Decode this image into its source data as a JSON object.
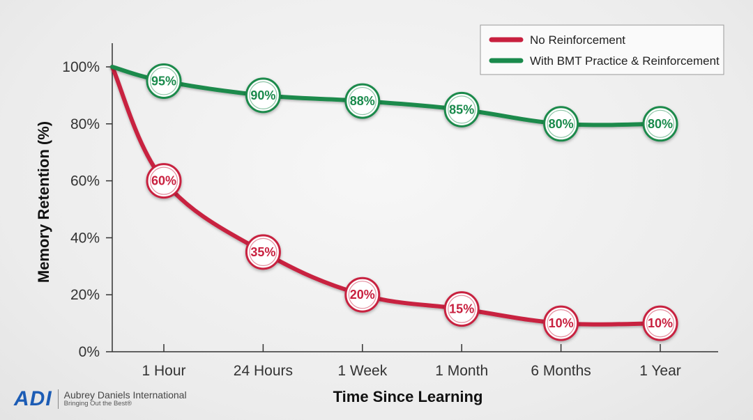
{
  "chart_data": {
    "type": "line",
    "categories": [
      "1 Hour",
      "24 Hours",
      "1 Week",
      "1 Month",
      "6 Months",
      "1 Year"
    ],
    "x_start_value": 100,
    "series": [
      {
        "name": "No Reinforcement",
        "color": "#c8203f",
        "values": [
          60,
          35,
          20,
          15,
          10,
          10
        ],
        "labels": [
          "60%",
          "35%",
          "20%",
          "15%",
          "10%",
          "10%"
        ]
      },
      {
        "name": "With BMT Practice & Reinforcement",
        "color": "#1a8a4c",
        "values": [
          95,
          90,
          88,
          85,
          80,
          80
        ],
        "labels": [
          "95%",
          "90%",
          "88%",
          "85%",
          "80%",
          "80%"
        ]
      }
    ],
    "xlabel": "Time Since Learning",
    "ylabel": "Memory Retention (%)",
    "ylim": [
      0,
      100
    ],
    "yticks": [
      "0%",
      "20%",
      "40%",
      "60%",
      "80%",
      "100%"
    ],
    "grid": false,
    "legend_position": "top-right"
  },
  "logo": {
    "mark": "ADI",
    "name": "Aubrey Daniels International",
    "tagline": "Bringing Out the Best®"
  }
}
